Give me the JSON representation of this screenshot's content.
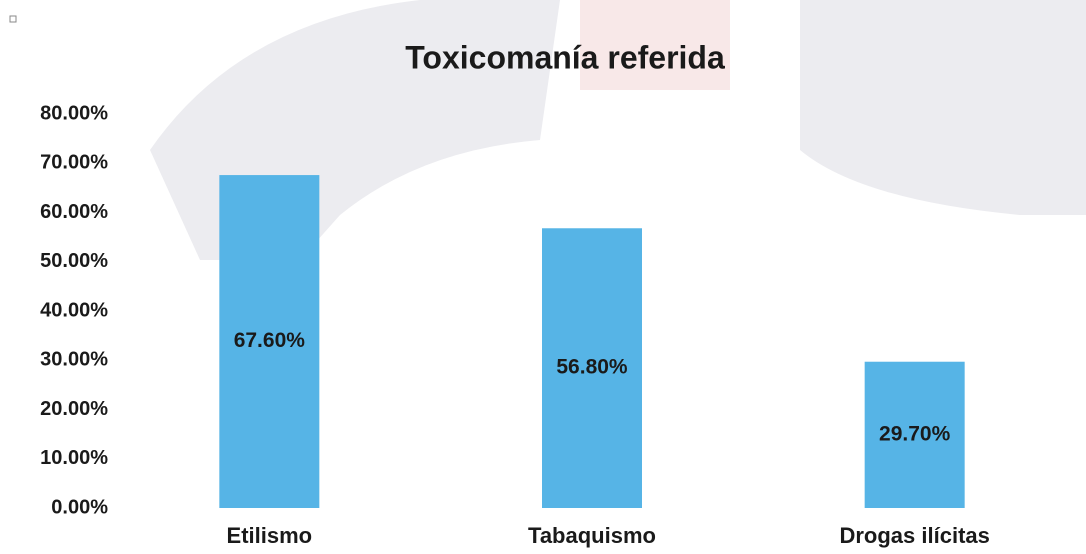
{
  "chart_data": {
    "type": "bar",
    "title": "Toxicomanía referida",
    "categories": [
      "Etilismo",
      "Tabaquismo",
      "Drogas ilícitas"
    ],
    "values": [
      67.6,
      56.8,
      29.7
    ],
    "value_labels": [
      "67.60%",
      "56.80%",
      "29.70%"
    ],
    "color": "#56b4e6",
    "ylim": [
      0,
      80
    ],
    "yticks": [
      {
        "value": 0,
        "label": "0.00%"
      },
      {
        "value": 10,
        "label": "10.00%"
      },
      {
        "value": 20,
        "label": "20.00%"
      },
      {
        "value": 30,
        "label": "30.00%"
      },
      {
        "value": 40,
        "label": "40.00%"
      },
      {
        "value": 50,
        "label": "50.00%"
      },
      {
        "value": 60,
        "label": "60.00%"
      },
      {
        "value": 70,
        "label": "70.00%"
      },
      {
        "value": 80,
        "label": "80.00%"
      }
    ],
    "grid": false
  }
}
